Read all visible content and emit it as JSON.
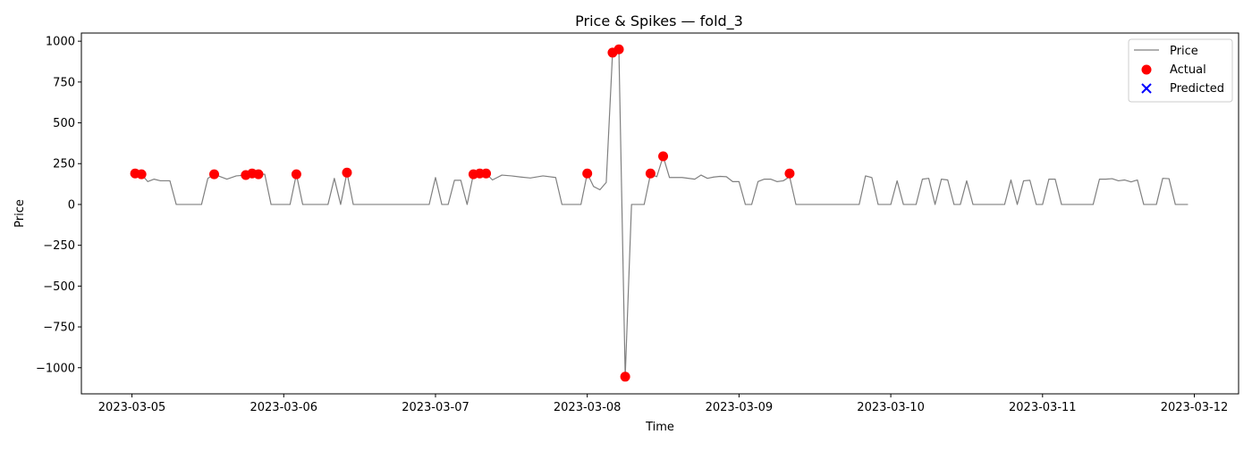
{
  "chart_data": {
    "type": "line",
    "title": "Price & Spikes — fold_3",
    "xlabel": "Time",
    "ylabel": "Price",
    "x_axis_type": "datetime",
    "xlim": [
      "2023-03-04T16:00",
      "2023-03-12T07:00"
    ],
    "ylim": [
      -1160,
      1050
    ],
    "x_ticks": [
      "2023-03-05",
      "2023-03-06",
      "2023-03-07",
      "2023-03-08",
      "2023-03-09",
      "2023-03-10",
      "2023-03-11",
      "2023-03-12"
    ],
    "y_ticks": [
      1000,
      750,
      500,
      250,
      0,
      -250,
      -500,
      -750,
      -1000
    ],
    "y_tick_labels": [
      "1000",
      "750",
      "500",
      "250",
      "0",
      "−250",
      "−500",
      "−750",
      "−1000"
    ],
    "grid": false,
    "legend": {
      "placement": "top-right",
      "entries": [
        "Price",
        "Actual",
        "Predicted"
      ]
    },
    "series": [
      {
        "name": "Price",
        "kind": "line",
        "color": "#808080",
        "points": [
          [
            "2023-03-05T00:00",
            170
          ],
          [
            "2023-03-05T00:30",
            188
          ],
          [
            "2023-03-05T01:30",
            185
          ],
          [
            "2023-03-05T02:30",
            140
          ],
          [
            "2023-03-05T03:30",
            155
          ],
          [
            "2023-03-05T04:30",
            145
          ],
          [
            "2023-03-05T06:00",
            145
          ],
          [
            "2023-03-05T07:00",
            0
          ],
          [
            "2023-03-05T11:00",
            0
          ],
          [
            "2023-03-05T12:00",
            160
          ],
          [
            "2023-03-05T13:00",
            185
          ],
          [
            "2023-03-05T15:00",
            155
          ],
          [
            "2023-03-05T16:30",
            175
          ],
          [
            "2023-03-05T18:00",
            180
          ],
          [
            "2023-03-05T19:00",
            190
          ],
          [
            "2023-03-05T20:00",
            185
          ],
          [
            "2023-03-05T21:00",
            185
          ],
          [
            "2023-03-05T22:00",
            0
          ],
          [
            "2023-03-06T01:00",
            0
          ],
          [
            "2023-03-06T02:00",
            185
          ],
          [
            "2023-03-06T03:00",
            0
          ],
          [
            "2023-03-06T07:00",
            0
          ],
          [
            "2023-03-06T08:00",
            160
          ],
          [
            "2023-03-06T09:00",
            0
          ],
          [
            "2023-03-06T10:00",
            195
          ],
          [
            "2023-03-06T11:00",
            0
          ],
          [
            "2023-03-06T23:00",
            0
          ],
          [
            "2023-03-07T00:00",
            165
          ],
          [
            "2023-03-07T01:00",
            0
          ],
          [
            "2023-03-07T02:00",
            0
          ],
          [
            "2023-03-07T03:00",
            148
          ],
          [
            "2023-03-07T04:00",
            148
          ],
          [
            "2023-03-07T05:00",
            0
          ],
          [
            "2023-03-07T06:00",
            185
          ],
          [
            "2023-03-07T07:00",
            190
          ],
          [
            "2023-03-07T08:00",
            190
          ],
          [
            "2023-03-07T09:00",
            150
          ],
          [
            "2023-03-07T10:30",
            180
          ],
          [
            "2023-03-07T12:00",
            175
          ],
          [
            "2023-03-07T13:30",
            168
          ],
          [
            "2023-03-07T15:00",
            162
          ],
          [
            "2023-03-07T17:00",
            175
          ],
          [
            "2023-03-07T19:00",
            165
          ],
          [
            "2023-03-07T20:00",
            0
          ],
          [
            "2023-03-07T23:00",
            0
          ],
          [
            "2023-03-08T00:00",
            190
          ],
          [
            "2023-03-08T01:00",
            110
          ],
          [
            "2023-03-08T02:00",
            90
          ],
          [
            "2023-03-08T03:00",
            135
          ],
          [
            "2023-03-08T04:00",
            930
          ],
          [
            "2023-03-08T05:00",
            950
          ],
          [
            "2023-03-08T06:00",
            -1055
          ],
          [
            "2023-03-08T07:00",
            0
          ],
          [
            "2023-03-08T09:00",
            0
          ],
          [
            "2023-03-08T10:00",
            185
          ],
          [
            "2023-03-08T11:00",
            170
          ],
          [
            "2023-03-08T12:00",
            295
          ],
          [
            "2023-03-08T13:00",
            165
          ],
          [
            "2023-03-08T15:00",
            165
          ],
          [
            "2023-03-08T17:00",
            155
          ],
          [
            "2023-03-08T18:00",
            180
          ],
          [
            "2023-03-08T19:00",
            160
          ],
          [
            "2023-03-08T20:00",
            168
          ],
          [
            "2023-03-08T21:00",
            172
          ],
          [
            "2023-03-08T22:00",
            170
          ],
          [
            "2023-03-08T23:00",
            140
          ],
          [
            "2023-03-09T00:00",
            140
          ],
          [
            "2023-03-09T01:00",
            0
          ],
          [
            "2023-03-09T02:00",
            0
          ],
          [
            "2023-03-09T03:00",
            140
          ],
          [
            "2023-03-09T04:00",
            155
          ],
          [
            "2023-03-09T05:00",
            155
          ],
          [
            "2023-03-09T06:00",
            140
          ],
          [
            "2023-03-09T07:00",
            145
          ],
          [
            "2023-03-09T08:00",
            170
          ],
          [
            "2023-03-09T09:00",
            0
          ],
          [
            "2023-03-09T19:00",
            0
          ],
          [
            "2023-03-09T20:00",
            175
          ],
          [
            "2023-03-09T21:00",
            165
          ],
          [
            "2023-03-09T22:00",
            0
          ],
          [
            "2023-03-10T00:00",
            0
          ],
          [
            "2023-03-10T01:00",
            145
          ],
          [
            "2023-03-10T02:00",
            0
          ],
          [
            "2023-03-10T04:00",
            0
          ],
          [
            "2023-03-10T05:00",
            155
          ],
          [
            "2023-03-10T06:00",
            160
          ],
          [
            "2023-03-10T07:00",
            0
          ],
          [
            "2023-03-10T08:00",
            155
          ],
          [
            "2023-03-10T09:00",
            150
          ],
          [
            "2023-03-10T10:00",
            0
          ],
          [
            "2023-03-10T11:00",
            0
          ],
          [
            "2023-03-10T12:00",
            145
          ],
          [
            "2023-03-10T13:00",
            0
          ],
          [
            "2023-03-10T18:00",
            0
          ],
          [
            "2023-03-10T19:00",
            150
          ],
          [
            "2023-03-10T20:00",
            0
          ],
          [
            "2023-03-10T21:00",
            145
          ],
          [
            "2023-03-10T22:00",
            148
          ],
          [
            "2023-03-10T23:00",
            0
          ],
          [
            "2023-03-11T00:00",
            0
          ],
          [
            "2023-03-11T01:00",
            155
          ],
          [
            "2023-03-11T02:00",
            155
          ],
          [
            "2023-03-11T03:00",
            0
          ],
          [
            "2023-03-11T08:00",
            0
          ],
          [
            "2023-03-11T09:00",
            155
          ],
          [
            "2023-03-11T10:00",
            155
          ],
          [
            "2023-03-11T11:00",
            158
          ],
          [
            "2023-03-11T12:00",
            145
          ],
          [
            "2023-03-11T13:00",
            150
          ],
          [
            "2023-03-11T14:00",
            138
          ],
          [
            "2023-03-11T15:00",
            150
          ],
          [
            "2023-03-11T16:00",
            0
          ],
          [
            "2023-03-11T18:00",
            0
          ],
          [
            "2023-03-11T19:00",
            160
          ],
          [
            "2023-03-11T20:00",
            158
          ],
          [
            "2023-03-11T21:00",
            0
          ],
          [
            "2023-03-11T23:00",
            0
          ]
        ]
      },
      {
        "name": "Actual",
        "kind": "scatter",
        "marker": "circle",
        "color": "#ff0000",
        "points": [
          [
            "2023-03-05T00:30",
            190
          ],
          [
            "2023-03-05T01:30",
            185
          ],
          [
            "2023-03-05T13:00",
            185
          ],
          [
            "2023-03-05T18:00",
            180
          ],
          [
            "2023-03-05T19:00",
            190
          ],
          [
            "2023-03-05T20:00",
            185
          ],
          [
            "2023-03-06T02:00",
            185
          ],
          [
            "2023-03-06T10:00",
            195
          ],
          [
            "2023-03-07T06:00",
            185
          ],
          [
            "2023-03-07T07:00",
            190
          ],
          [
            "2023-03-07T08:00",
            190
          ],
          [
            "2023-03-08T00:00",
            190
          ],
          [
            "2023-03-08T04:00",
            930
          ],
          [
            "2023-03-08T05:00",
            950
          ],
          [
            "2023-03-08T06:00",
            -1055
          ],
          [
            "2023-03-08T10:00",
            190
          ],
          [
            "2023-03-08T12:00",
            295
          ],
          [
            "2023-03-09T08:00",
            190
          ]
        ]
      },
      {
        "name": "Predicted",
        "kind": "scatter",
        "marker": "x",
        "color": "#0000ff",
        "points": []
      }
    ]
  }
}
